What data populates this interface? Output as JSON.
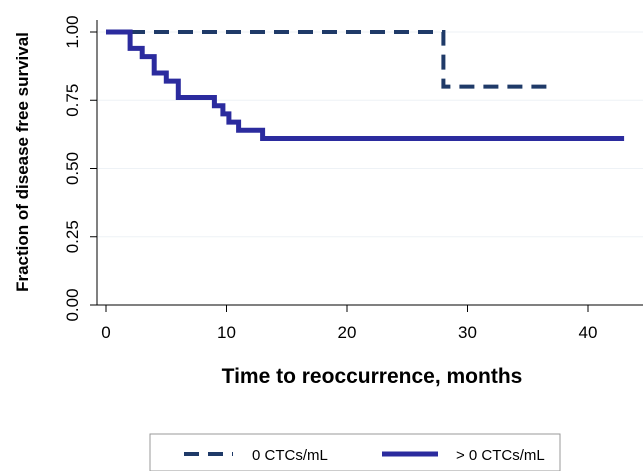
{
  "chart_data": {
    "type": "line",
    "xlabel": "Time to reoccurrence, months",
    "ylabel": "Fraction of disease free survival",
    "xlim": [
      0,
      43
    ],
    "ylim": [
      0,
      1
    ],
    "x_ticks": [
      "0",
      "10",
      "20",
      "30",
      "40"
    ],
    "y_ticks": [
      "0.00",
      "0.25",
      "0.50",
      "0.75",
      "1.00"
    ],
    "x_tick_values": [
      0,
      10,
      20,
      30,
      40
    ],
    "y_tick_values": [
      0,
      0.25,
      0.5,
      0.75,
      1
    ],
    "step": true,
    "grid": "horizontal",
    "legend_position": "bottom",
    "series": [
      {
        "name": "0 CTCs/mL",
        "color": "#1f3a68",
        "style": "dashed",
        "points": [
          [
            0,
            1.0
          ],
          [
            28,
            1.0
          ],
          [
            28,
            0.8
          ],
          [
            37,
            0.8
          ]
        ]
      },
      {
        "name": "> 0 CTCs/mL",
        "color": "#2b2b9e",
        "style": "solid",
        "points": [
          [
            0,
            1.0
          ],
          [
            2,
            1.0
          ],
          [
            2,
            0.94
          ],
          [
            3,
            0.94
          ],
          [
            3,
            0.91
          ],
          [
            4,
            0.91
          ],
          [
            4,
            0.85
          ],
          [
            5,
            0.85
          ],
          [
            5,
            0.82
          ],
          [
            6,
            0.82
          ],
          [
            6,
            0.76
          ],
          [
            9,
            0.76
          ],
          [
            9,
            0.73
          ],
          [
            9.7,
            0.73
          ],
          [
            9.7,
            0.7
          ],
          [
            10.2,
            0.7
          ],
          [
            10.2,
            0.67
          ],
          [
            11,
            0.67
          ],
          [
            11,
            0.64
          ],
          [
            13,
            0.64
          ],
          [
            13,
            0.61
          ],
          [
            43,
            0.61
          ]
        ]
      }
    ]
  }
}
